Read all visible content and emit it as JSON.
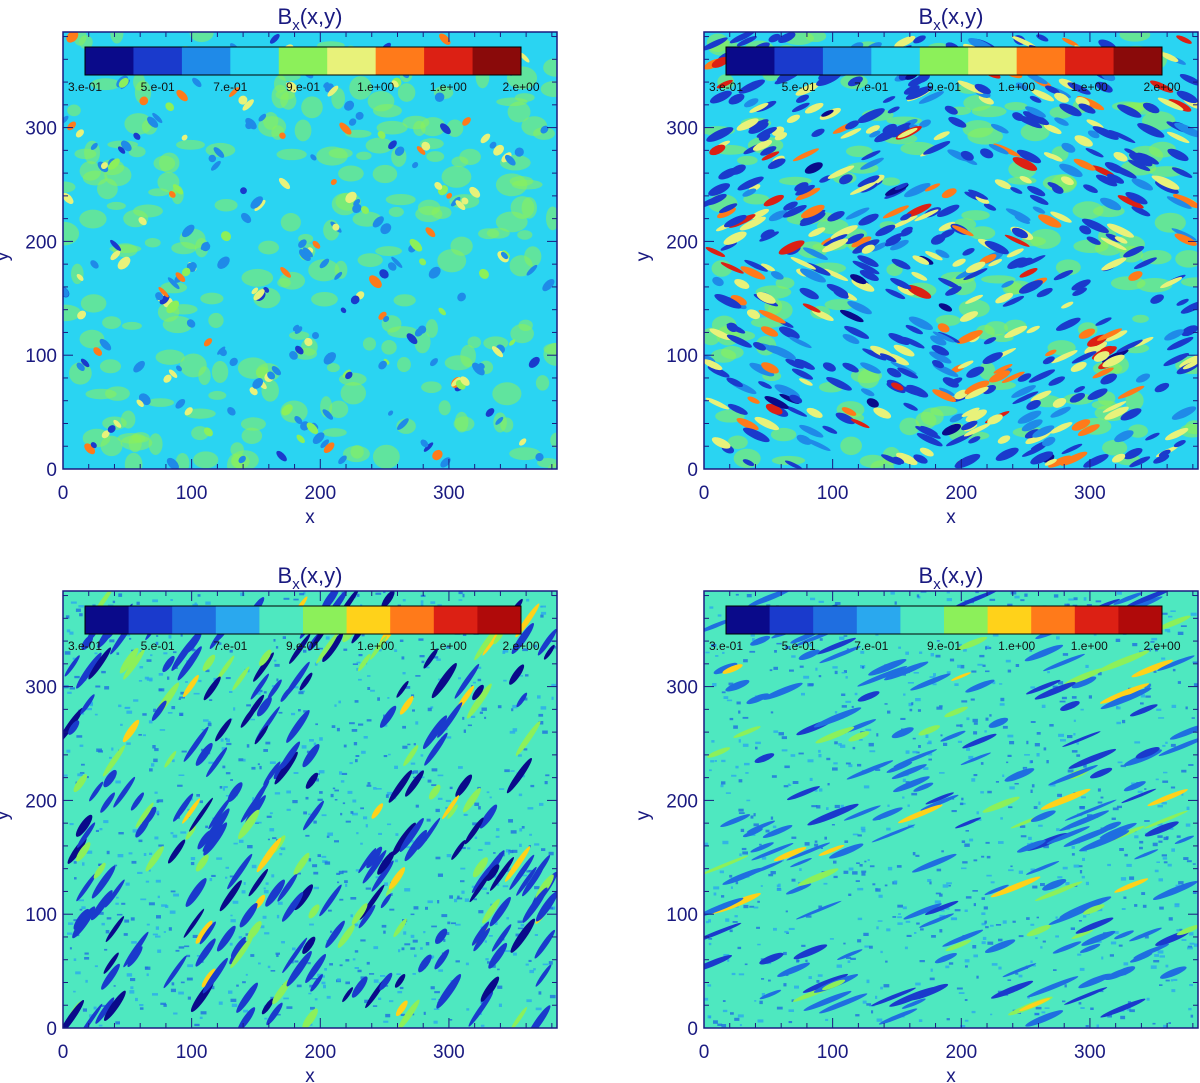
{
  "chart_data": [
    {
      "type": "heatmap",
      "title": "B",
      "title_subscript": "x",
      "title_suffix": "(x,y)",
      "xlabel": "x",
      "ylabel": "y",
      "xlim": [
        0,
        384
      ],
      "ylim": [
        0,
        384
      ],
      "xticks": [
        "0",
        "100",
        "200",
        "300"
      ],
      "yticks": [
        "0",
        "100",
        "200",
        "300"
      ],
      "colorbar": {
        "levels": 9,
        "colors": [
          "#0a0a8a",
          "#1a3acc",
          "#1f8ae8",
          "#2ad4f2",
          "#8cf05a",
          "#e8f27a",
          "#ff7a1a",
          "#dc2014",
          "#8a0a0a"
        ],
        "labels": [
          "3.e-01",
          "5.e-01",
          "7.e-01",
          "9.e-01",
          "1.e+00",
          "1.e+00",
          "2.e+00"
        ]
      },
      "pattern": "checker-diagonal",
      "background_level": "#2ad4f2"
    },
    {
      "type": "heatmap",
      "title": "B",
      "title_subscript": "x",
      "title_suffix": "(x,y)",
      "xlabel": "x",
      "ylabel": "y",
      "xlim": [
        0,
        384
      ],
      "ylim": [
        0,
        384
      ],
      "xticks": [
        "0",
        "100",
        "200",
        "300"
      ],
      "yticks": [
        "0",
        "100",
        "200",
        "300"
      ],
      "colorbar": {
        "levels": 9,
        "colors": [
          "#0a0a8a",
          "#1a3acc",
          "#1f8ae8",
          "#2ad4f2",
          "#8cf05a",
          "#e8f27a",
          "#ff7a1a",
          "#dc2014",
          "#8a0a0a"
        ],
        "labels": [
          "3.e-01",
          "5.e-01",
          "7.e-01",
          "9.e-01",
          "1.e+00",
          "1.e+00",
          "2.e+00"
        ]
      },
      "pattern": "oblique-waves",
      "background_level": "#2ad4f2"
    },
    {
      "type": "heatmap",
      "title": "B",
      "title_subscript": "x",
      "title_suffix": "(x,y)",
      "xlabel": "x",
      "ylabel": "y",
      "xlim": [
        0,
        384
      ],
      "ylim": [
        0,
        384
      ],
      "xticks": [
        "0",
        "100",
        "200",
        "300"
      ],
      "yticks": [
        "0",
        "100",
        "200",
        "300"
      ],
      "colorbar": {
        "levels": 10,
        "colors": [
          "#0a0a8a",
          "#1a3acc",
          "#1f6ee0",
          "#2aa8ee",
          "#4ee8c0",
          "#8cf05a",
          "#ffd21a",
          "#ff7a1a",
          "#dc2014",
          "#b00a0a"
        ],
        "labels": [
          "3.e-01",
          "5.e-01",
          "7.e-01",
          "9.e-01",
          "1.e+00",
          "1.e+00",
          "2.e+00"
        ]
      },
      "pattern": "steep-streaks",
      "background_level": "#4ee8c0"
    },
    {
      "type": "heatmap",
      "title": "B",
      "title_subscript": "x",
      "title_suffix": "(x,y)",
      "xlabel": "x",
      "ylabel": "y",
      "xlim": [
        0,
        384
      ],
      "ylim": [
        0,
        384
      ],
      "xticks": [
        "0",
        "100",
        "200",
        "300"
      ],
      "yticks": [
        "0",
        "100",
        "200",
        "300"
      ],
      "colorbar": {
        "levels": 10,
        "colors": [
          "#0a0a8a",
          "#1a3acc",
          "#1f6ee0",
          "#2aa8ee",
          "#4ee8c0",
          "#8cf05a",
          "#ffd21a",
          "#ff7a1a",
          "#dc2014",
          "#b00a0a"
        ],
        "labels": [
          "3.e-01",
          "5.e-01",
          "7.e-01",
          "9.e-01",
          "1.e+00",
          "1.e+00",
          "2.e+00"
        ]
      },
      "pattern": "shallow-streaks",
      "background_level": "#4ee8c0"
    }
  ]
}
